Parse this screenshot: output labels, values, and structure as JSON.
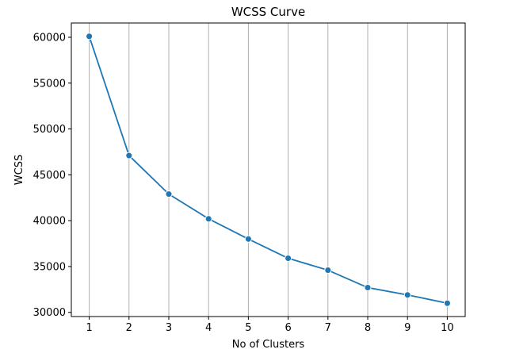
{
  "chart_data": {
    "type": "line",
    "title": "WCSS Curve",
    "xlabel": "No of Clusters",
    "ylabel": "WCSS",
    "x": [
      1,
      2,
      3,
      4,
      5,
      6,
      7,
      8,
      9,
      10
    ],
    "xticks": [
      "1",
      "2",
      "3",
      "4",
      "5",
      "6",
      "7",
      "8",
      "9",
      "10"
    ],
    "yticks": [
      30000,
      35000,
      40000,
      45000,
      50000,
      55000,
      60000
    ],
    "series": [
      {
        "values": [
          60100,
          47100,
          42900,
          40200,
          38000,
          35900,
          34600,
          32700,
          31900,
          31000
        ],
        "color": "#1f77b4",
        "marker": "circle"
      }
    ],
    "xlim": [
      0.55,
      10.45
    ],
    "ylim": [
      29545,
      61555
    ],
    "grid": "vertical",
    "grid_color": "#b0b0b0"
  }
}
